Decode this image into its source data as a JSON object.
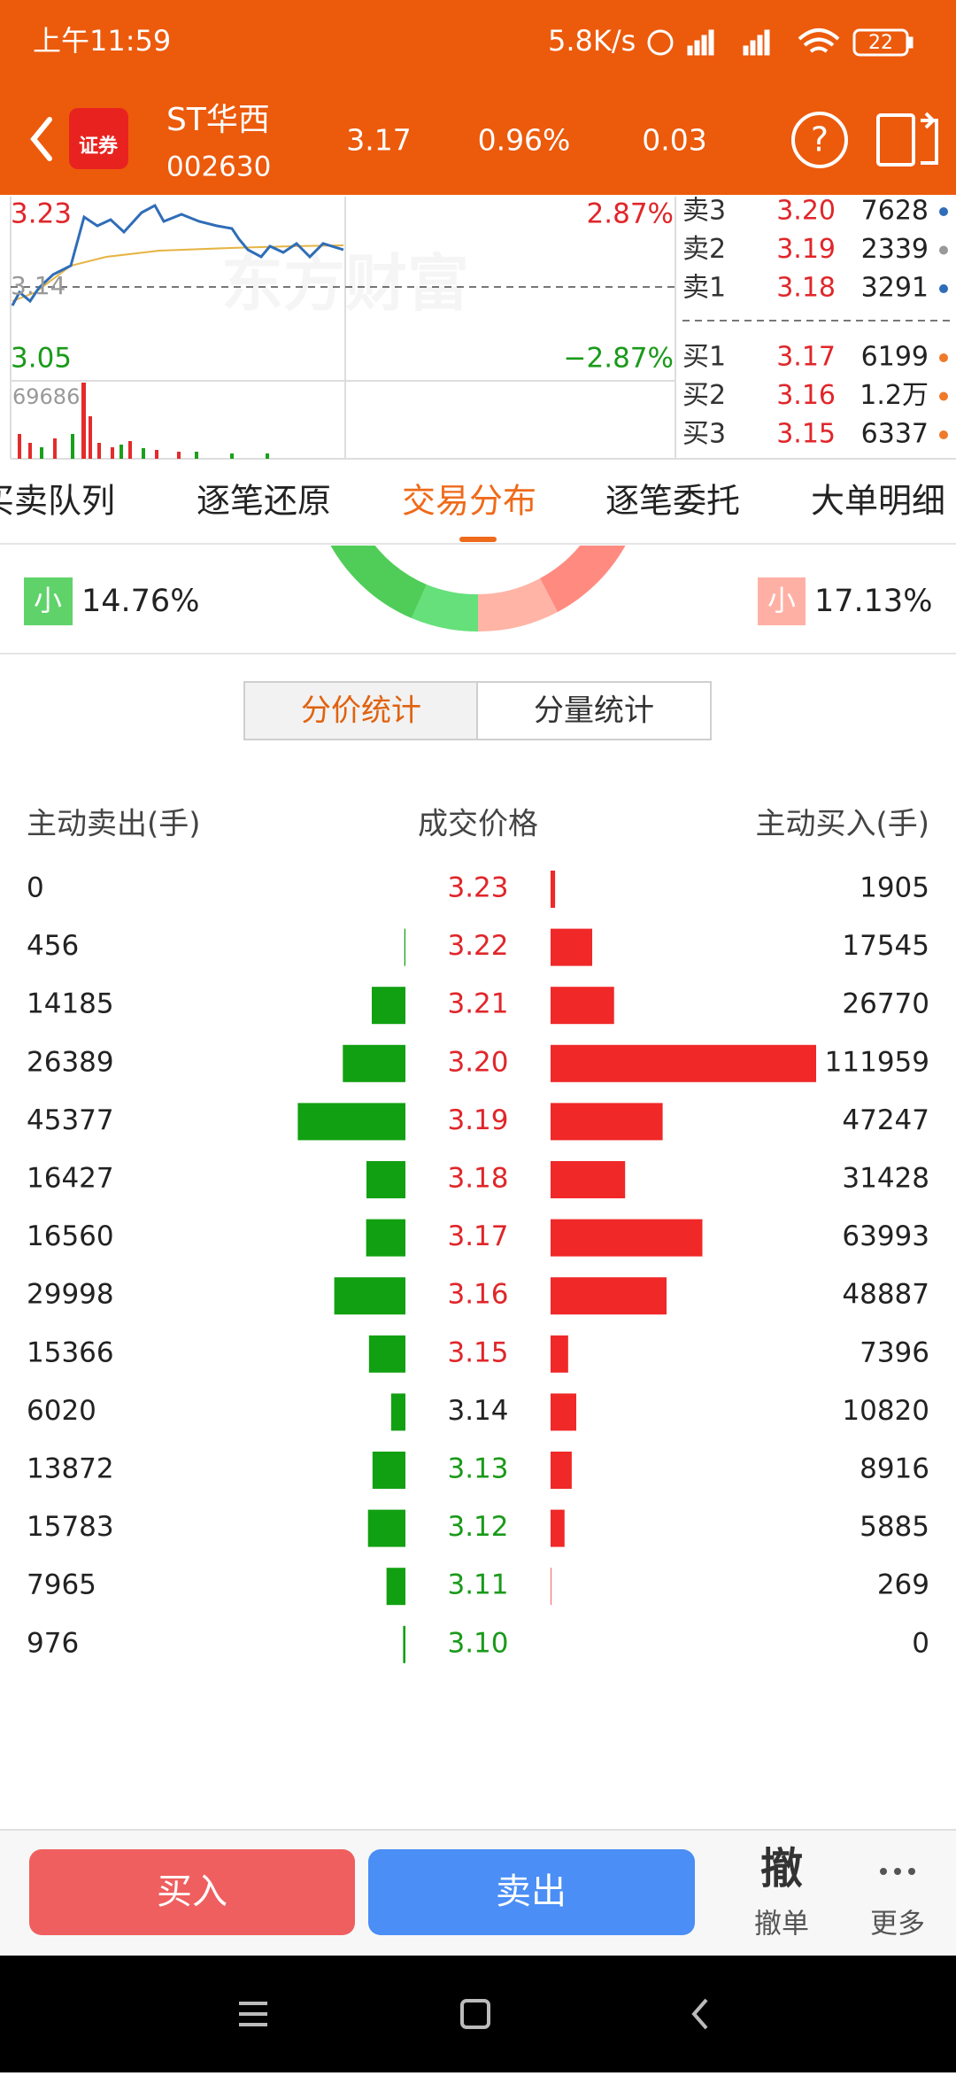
{
  "status_bar": {
    "time": "上午11:59",
    "speed": "5.8K/s",
    "battery": "22"
  },
  "header": {
    "logo": "证券",
    "name": "ST华西",
    "code": "002630",
    "price": "3.17",
    "change_pct": "0.96%",
    "change": "0.03"
  },
  "mini_chart": {
    "high": "3.23",
    "high_pct": "2.87%",
    "mid": "3.14",
    "low": "3.05",
    "low_pct": "−2.87%",
    "volume": "69686",
    "watermark": "东方财富"
  },
  "order_book": {
    "asks": [
      {
        "label": "卖3",
        "price": "3.20",
        "volume": "7628"
      },
      {
        "label": "卖2",
        "price": "3.19",
        "volume": "2339"
      },
      {
        "label": "卖1",
        "price": "3.18",
        "volume": "3291"
      }
    ],
    "bids": [
      {
        "label": "买1",
        "price": "3.17",
        "volume": "6199"
      },
      {
        "label": "买2",
        "price": "3.16",
        "volume": "1.2万"
      },
      {
        "label": "买3",
        "price": "3.15",
        "volume": "6337"
      }
    ]
  },
  "tabs": [
    "买卖队列",
    "逐笔还原",
    "交易分布",
    "逐笔委托",
    "大单明细"
  ],
  "active_tab": 2,
  "distribution": {
    "small_sell": {
      "label": "小",
      "pct": "14.76%"
    },
    "small_buy": {
      "label": "小",
      "pct": "17.13%"
    }
  },
  "toggle": {
    "options": [
      "分价统计",
      "分量统计"
    ],
    "active": 0
  },
  "table": {
    "headers": [
      "主动卖出(手)",
      "成交价格",
      "主动买入(手)"
    ],
    "rows": [
      {
        "sell": 0,
        "price": "3.23",
        "buy": 1905
      },
      {
        "sell": 456,
        "price": "3.22",
        "buy": 17545
      },
      {
        "sell": 14185,
        "price": "3.21",
        "buy": 26770
      },
      {
        "sell": 26389,
        "price": "3.20",
        "buy": 111959
      },
      {
        "sell": 45377,
        "price": "3.19",
        "buy": 47247
      },
      {
        "sell": 16427,
        "price": "3.18",
        "buy": 31428
      },
      {
        "sell": 16560,
        "price": "3.17",
        "buy": 63993
      },
      {
        "sell": 29998,
        "price": "3.16",
        "buy": 48887
      },
      {
        "sell": 15366,
        "price": "3.15",
        "buy": 7396
      },
      {
        "sell": 6020,
        "price": "3.14",
        "buy": 10820
      },
      {
        "sell": 13872,
        "price": "3.13",
        "buy": 8916
      },
      {
        "sell": 15783,
        "price": "3.12",
        "buy": 5885
      },
      {
        "sell": 7965,
        "price": "3.11",
        "buy": 269
      },
      {
        "sell": 976,
        "price": "3.10",
        "buy": 0
      }
    ]
  },
  "bottom": {
    "buy": "买入",
    "sell": "卖出",
    "cancel_icon": "撤",
    "cancel": "撤单",
    "more": "更多"
  }
}
